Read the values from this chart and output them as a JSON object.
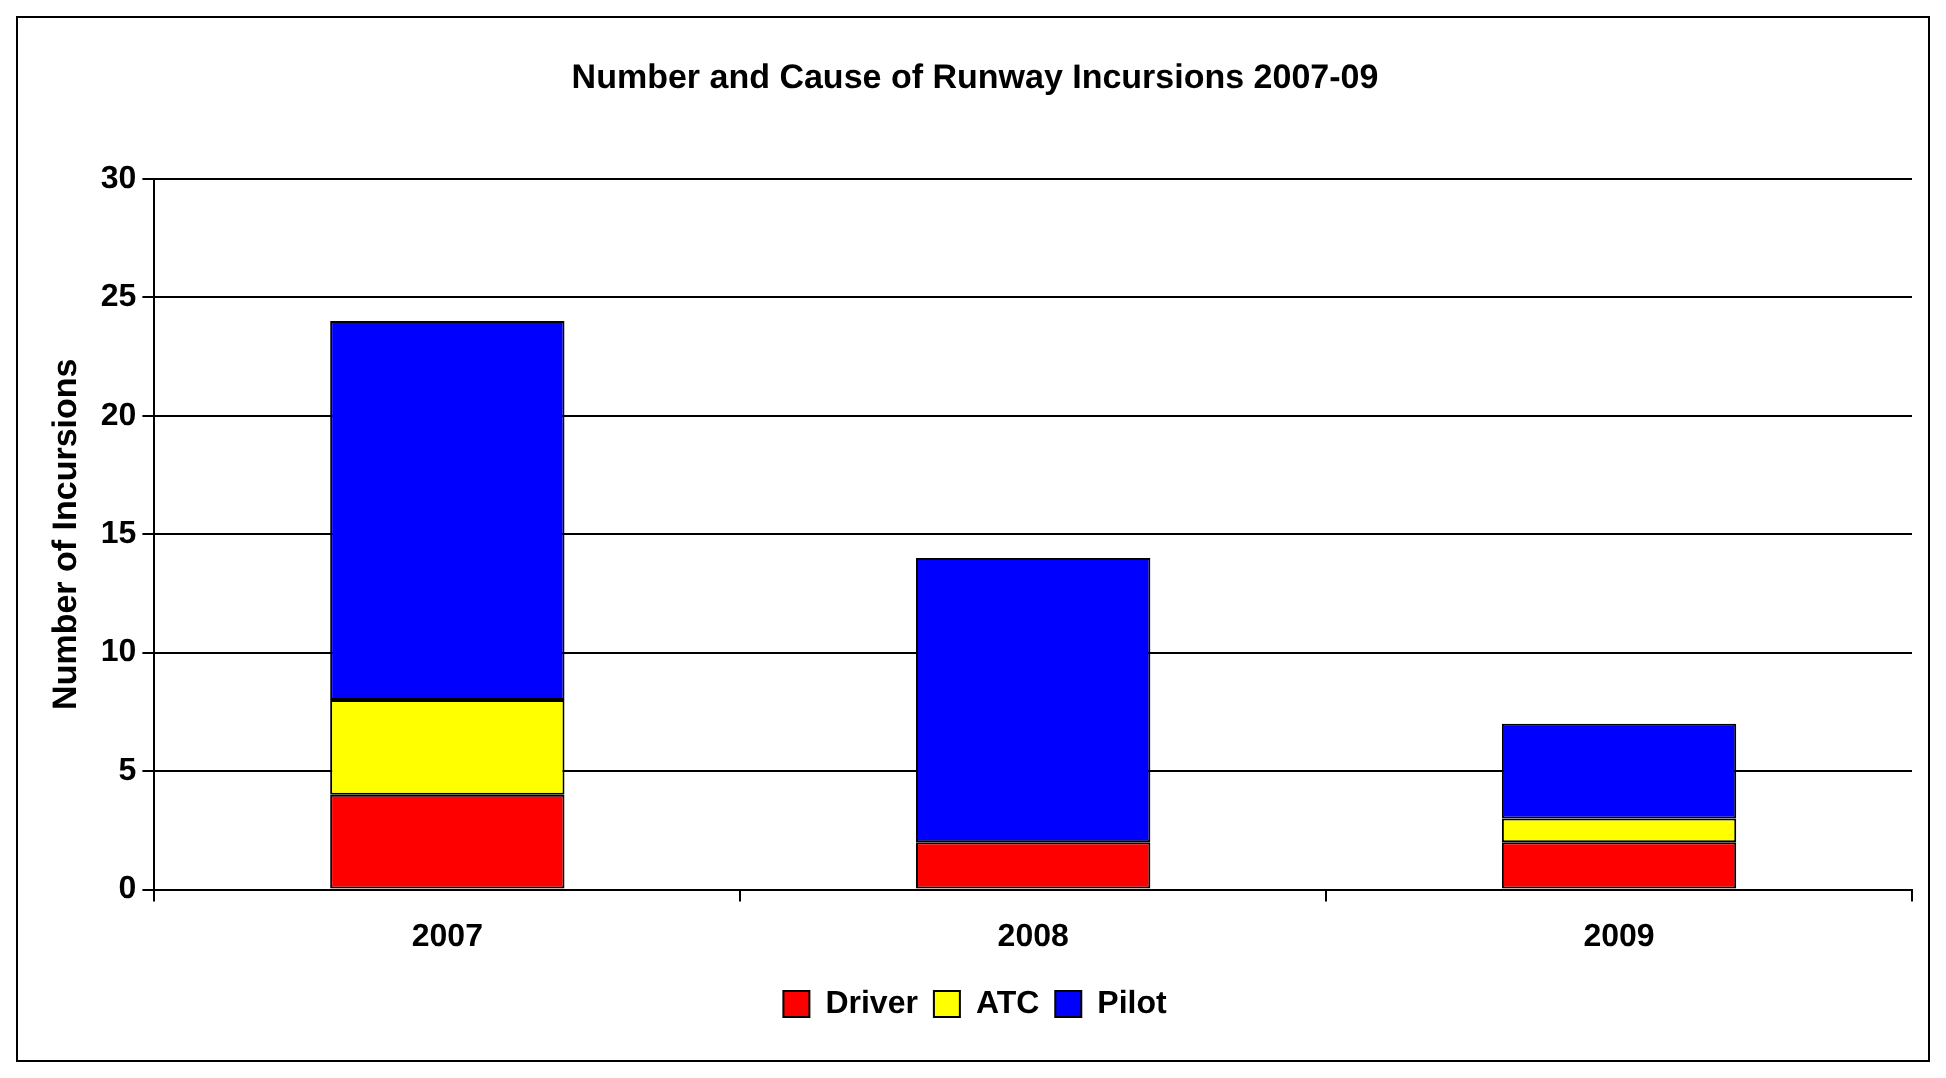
{
  "chart_data": {
    "type": "bar",
    "title": "Number and Cause of Runway Incursions 2007-09",
    "ylabel": "Number of Incursions",
    "categories": [
      "2007",
      "2008",
      "2009"
    ],
    "stacked": true,
    "series": [
      {
        "name": "Driver",
        "color": "#ff0000",
        "values": [
          4,
          2,
          2
        ]
      },
      {
        "name": "ATC",
        "color": "#ffff00",
        "values": [
          4,
          0,
          1
        ]
      },
      {
        "name": "Pilot",
        "color": "#0000ff",
        "values": [
          16,
          12,
          4
        ]
      }
    ],
    "ylim": [
      0,
      30
    ],
    "yticks": [
      0,
      5,
      10,
      15,
      20,
      25,
      30
    ],
    "grid": "y",
    "legend": "bottom"
  }
}
